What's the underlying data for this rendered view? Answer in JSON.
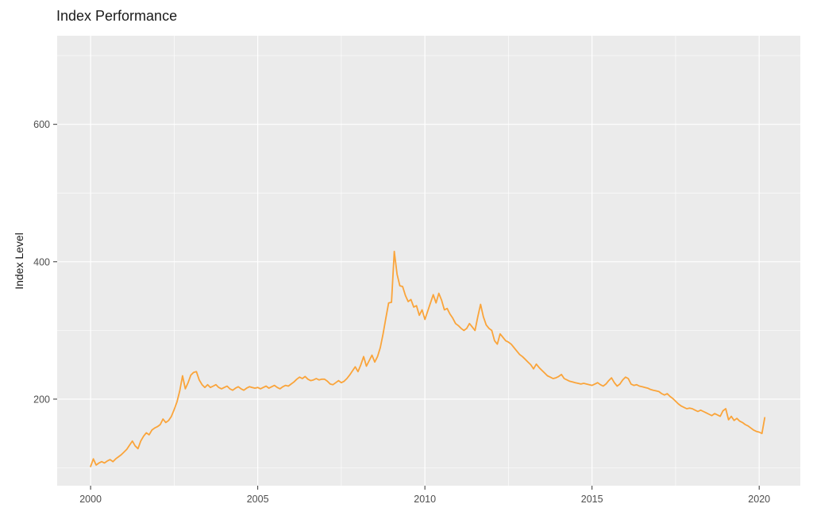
{
  "chart_data": {
    "type": "line",
    "title": "Index Performance",
    "ylabel": "Index Level",
    "xlabel": "",
    "legend": "none",
    "grid": "on",
    "panel_bg": "#EBEBEB",
    "grid_color": "#FFFFFF",
    "tick_mark_color": "#333333",
    "tick_label_color": "#4D4D4D",
    "line_color": "#FAA43A",
    "xlim": [
      1999.0,
      2021.23
    ],
    "ylim": [
      74,
      729
    ],
    "x_ticks": [
      {
        "value": 2000,
        "label": "2000"
      },
      {
        "value": 2005,
        "label": "2005"
      },
      {
        "value": 2010,
        "label": "2010"
      },
      {
        "value": 2015,
        "label": "2015"
      },
      {
        "value": 2020,
        "label": "2020"
      }
    ],
    "x_minor": [
      2002.5,
      2007.5,
      2012.5,
      2017.5
    ],
    "y_ticks": [
      {
        "value": 200,
        "label": "200"
      },
      {
        "value": 400,
        "label": "400"
      },
      {
        "value": 600,
        "label": "600"
      }
    ],
    "y_minor": [
      100,
      300,
      500,
      700
    ],
    "series": [
      {
        "name": "Index Level",
        "color": "#FAA43A",
        "x_start_year": 2000,
        "points_per_year": 12,
        "values": [
          102,
          113,
          104,
          107,
          109,
          107,
          110,
          112,
          109,
          113,
          116,
          119,
          123,
          127,
          133,
          139,
          132,
          128,
          139,
          146,
          151,
          148,
          155,
          158,
          160,
          163,
          171,
          166,
          169,
          175,
          185,
          196,
          212,
          234,
          215,
          224,
          235,
          239,
          240,
          228,
          221,
          217,
          221,
          217,
          219,
          221,
          217,
          215,
          217,
          219,
          215,
          213,
          216,
          218,
          215,
          213,
          216,
          218,
          217,
          216,
          217,
          215,
          217,
          219,
          216,
          218,
          220,
          217,
          215,
          218,
          220,
          219,
          222,
          225,
          229,
          232,
          230,
          233,
          229,
          227,
          228,
          230,
          228,
          229,
          229,
          226,
          222,
          221,
          224,
          227,
          224,
          226,
          230,
          235,
          241,
          247,
          240,
          250,
          262,
          248,
          256,
          264,
          254,
          262,
          275,
          295,
          318,
          340,
          341,
          415,
          382,
          365,
          364,
          351,
          342,
          345,
          334,
          336,
          322,
          330,
          316,
          328,
          340,
          352,
          340,
          354,
          344,
          330,
          332,
          324,
          318,
          310,
          307,
          303,
          300,
          303,
          310,
          305,
          300,
          320,
          338,
          320,
          308,
          303,
          300,
          285,
          280,
          295,
          290,
          285,
          283,
          280,
          275,
          270,
          265,
          262,
          258,
          254,
          250,
          244,
          251,
          246,
          242,
          238,
          234,
          232,
          230,
          231,
          233,
          236,
          230,
          228,
          226,
          225,
          224,
          223,
          222,
          223,
          222,
          221,
          220,
          222,
          224,
          221,
          219,
          222,
          227,
          231,
          224,
          219,
          222,
          228,
          232,
          230,
          222,
          220,
          221,
          219,
          218,
          217,
          216,
          214,
          213,
          212,
          211,
          208,
          206,
          208,
          204,
          201,
          197,
          193,
          190,
          188,
          186,
          187,
          186,
          184,
          182,
          184,
          182,
          180,
          178,
          176,
          179,
          177,
          175,
          183,
          186,
          170,
          175,
          169,
          172,
          168,
          166,
          163,
          161,
          158,
          155,
          153,
          152,
          150,
          173
        ]
      }
    ]
  }
}
